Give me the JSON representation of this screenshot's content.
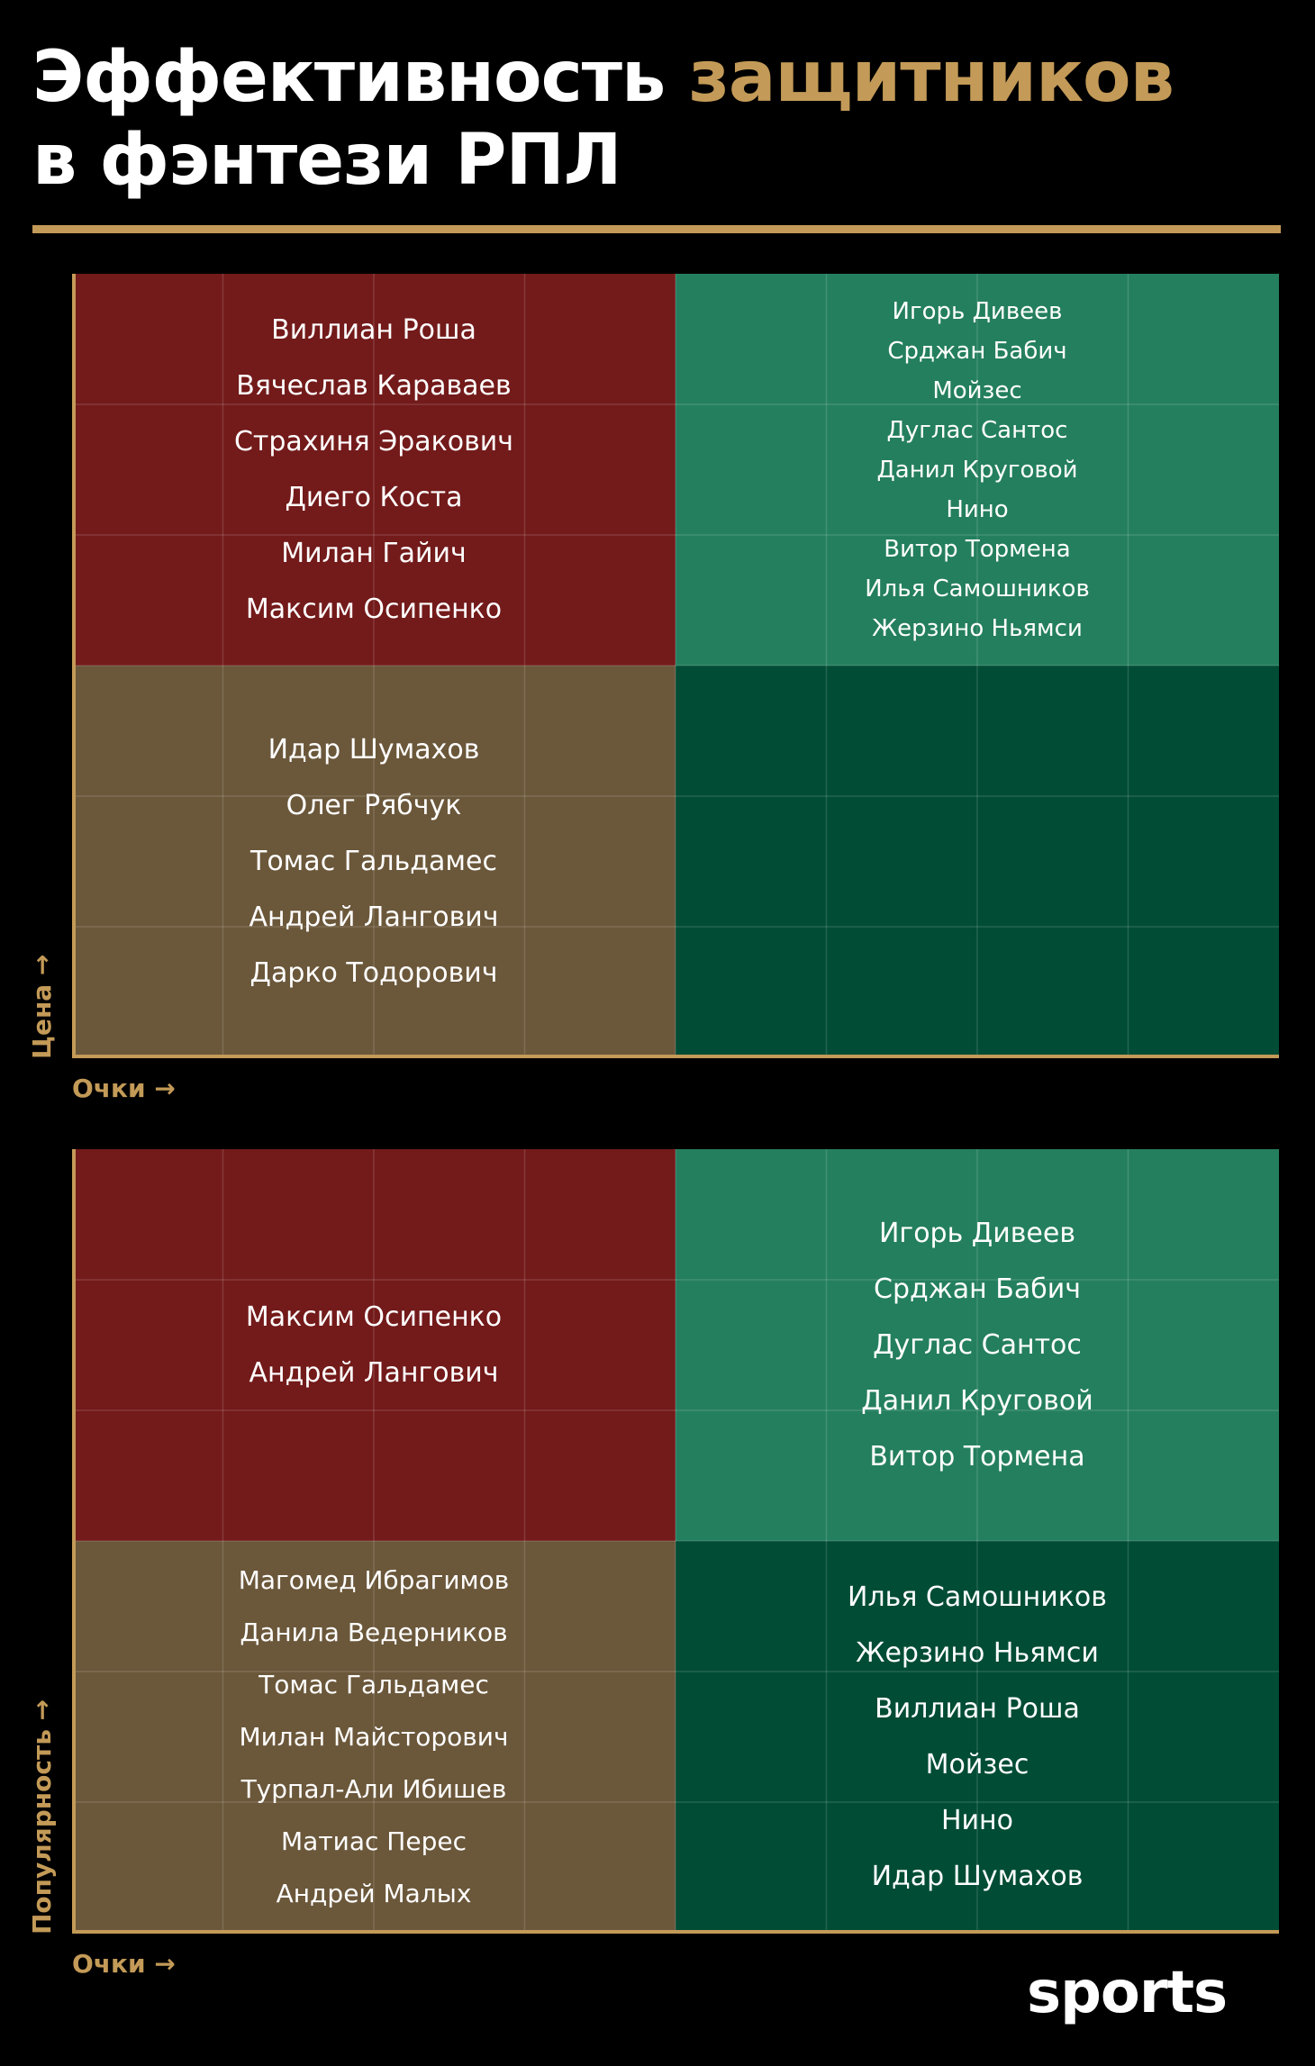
{
  "title": {
    "part1": "Эффективность ",
    "accent": "защитников",
    "line2": "в фэнтези РПЛ"
  },
  "colors": {
    "accent": "#c39a57",
    "quadrant_top_left": "#731a1a",
    "quadrant_top_right": "#247f5e",
    "quadrant_bottom_left": "#6b573a",
    "quadrant_bottom_right": "#004c34"
  },
  "logo": "sports",
  "chart_data": [
    {
      "type": "quadrant",
      "xlabel": "Очки →",
      "ylabel": "Цена →",
      "quadrants": {
        "top_left": [
          "Виллиан Роша",
          "Вячеслав Караваев",
          "Страхиня Эракович",
          "Диего Коста",
          "Милан Гайич",
          "Максим Осипенко"
        ],
        "top_right": [
          "Игорь Дивеев",
          "Срджан Бабич",
          "Мойзес",
          "Дуглас Сантос",
          "Данил Круговой",
          "Нино",
          "Витор Тормена",
          "Илья Самошников",
          "Жерзино Ньямси"
        ],
        "bottom_left": [
          "Идар Шумахов",
          "Олег Рябчук",
          "Томас Гальдамес",
          "Андрей Лангович",
          "Дарко Тодорович"
        ],
        "bottom_right": []
      }
    },
    {
      "type": "quadrant",
      "xlabel": "Очки →",
      "ylabel": "Популярность →",
      "quadrants": {
        "top_left": [
          "Максим Осипенко",
          "Андрей Лангович"
        ],
        "top_right": [
          "Игорь Дивеев",
          "Срджан Бабич",
          "Дуглас Сантос",
          "Данил Круговой",
          "Витор Тормена"
        ],
        "bottom_left": [
          "Магомед Ибрагимов",
          "Данила Ведерников",
          "Томас Гальдамес",
          "Милан Майсторович",
          "Турпал-Али Ибишев",
          "Матиас Перес",
          "Андрей Малых"
        ],
        "bottom_right": [
          "Илья Самошников",
          "Жерзино Ньямси",
          "Виллиан Роша",
          "Мойзес",
          "Нино",
          "Идар Шумахов"
        ]
      }
    }
  ]
}
